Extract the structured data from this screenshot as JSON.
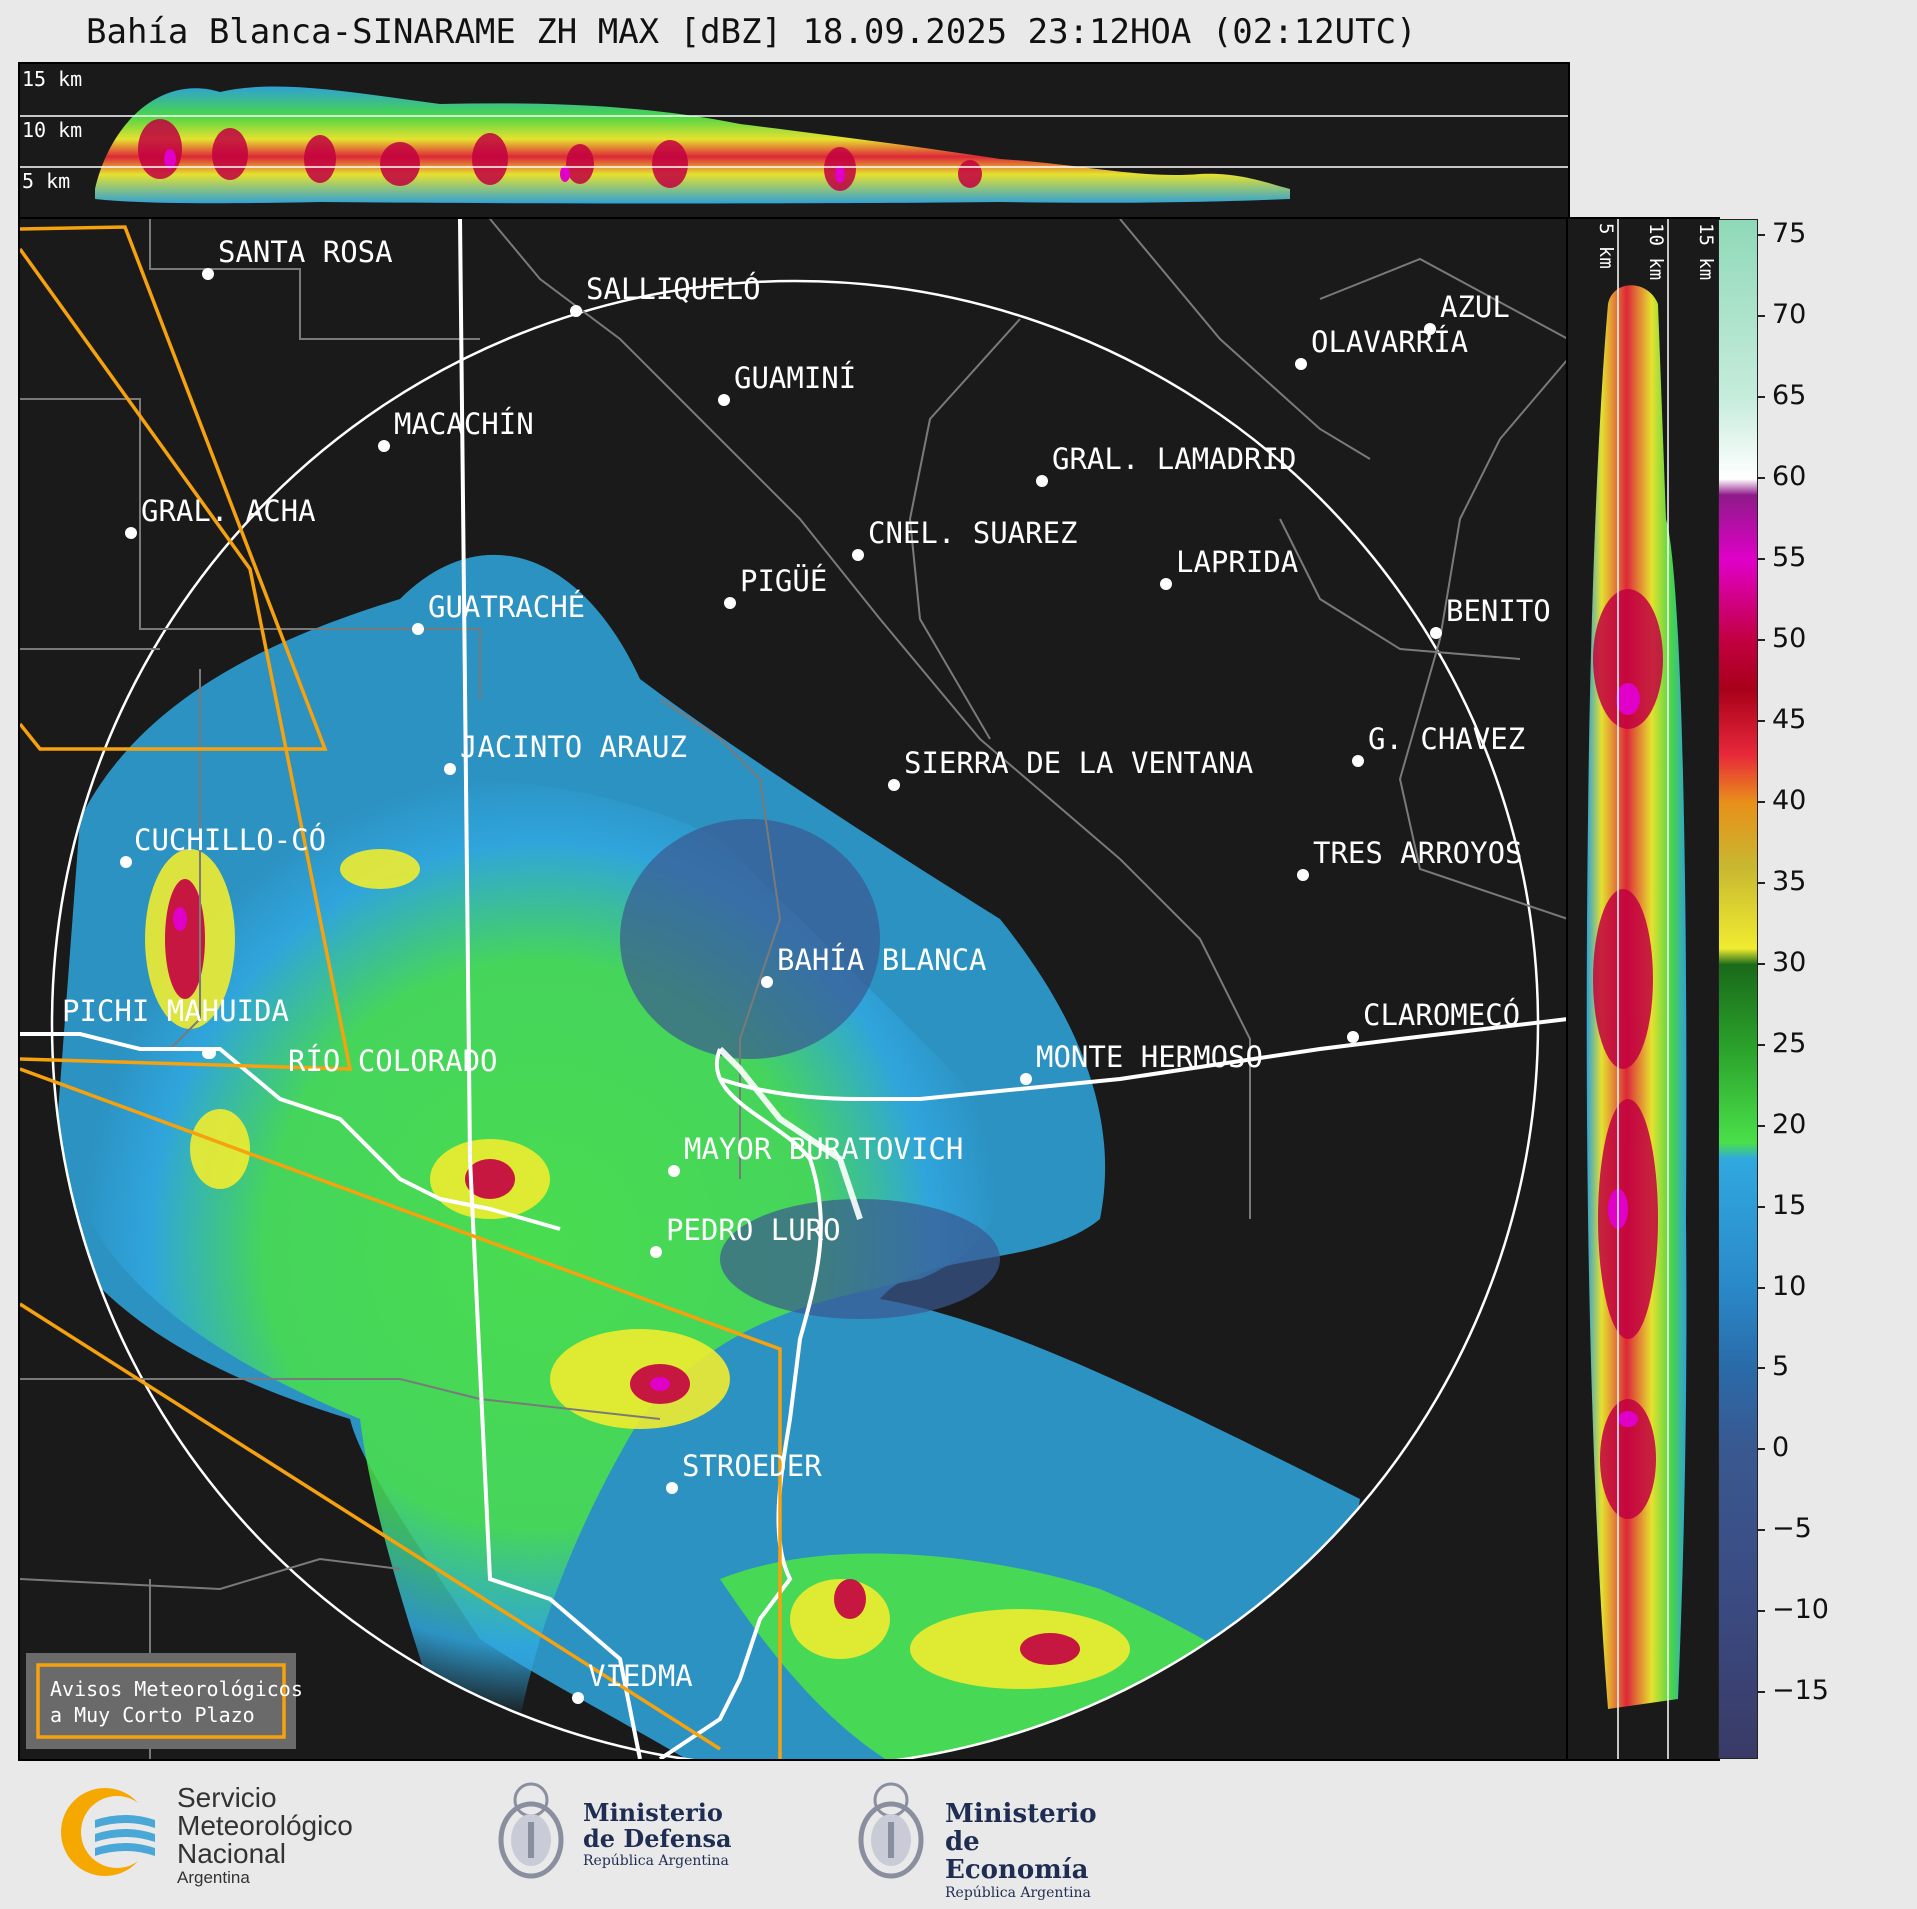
{
  "title": "Bahía Blanca-SINARAME ZH MAX [dBZ] 18.09.2025 23:12HOA (02:12UTC)",
  "top_panel": {
    "height_labels": [
      "15 km",
      "10 km",
      "5 km"
    ]
  },
  "side_panel": {
    "height_labels": [
      "5 km",
      "10 km",
      "15 km"
    ]
  },
  "colorbar": {
    "ticks": [
      "75",
      "70",
      "65",
      "60",
      "55",
      "50",
      "45",
      "40",
      "35",
      "30",
      "25",
      "20",
      "15",
      "10",
      "5",
      "0",
      "−5",
      "−10",
      "−15"
    ],
    "stops": [
      {
        "dbz": 76,
        "color": "#8fd9b8"
      },
      {
        "dbz": 65,
        "color": "#c6ecdc"
      },
      {
        "dbz": 60,
        "color": "#ffffff"
      },
      {
        "dbz": 59,
        "color": "#8e1a8a"
      },
      {
        "dbz": 55,
        "color": "#e000c8"
      },
      {
        "dbz": 50,
        "color": "#c20040"
      },
      {
        "dbz": 47,
        "color": "#a8001a"
      },
      {
        "dbz": 43,
        "color": "#e8283a"
      },
      {
        "dbz": 40,
        "color": "#e8901a"
      },
      {
        "dbz": 36,
        "color": "#c8b830"
      },
      {
        "dbz": 31,
        "color": "#f0ec30"
      },
      {
        "dbz": 30,
        "color": "#1a6a1a"
      },
      {
        "dbz": 25,
        "color": "#2aa02a"
      },
      {
        "dbz": 19,
        "color": "#4ae04a"
      },
      {
        "dbz": 18,
        "color": "#30a8e0"
      },
      {
        "dbz": 10,
        "color": "#2a88c8"
      },
      {
        "dbz": 5,
        "color": "#2a6aa8"
      },
      {
        "dbz": 0,
        "color": "#3a5890"
      },
      {
        "dbz": -10,
        "color": "#3a4a80"
      },
      {
        "dbz": -19,
        "color": "#3a3a66"
      }
    ]
  },
  "cities": [
    {
      "name": "SANTA ROSA"
    },
    {
      "name": "SALLIQUELÓ"
    },
    {
      "name": "AZUL"
    },
    {
      "name": "OLAVARRÍA"
    },
    {
      "name": "GUAMINÍ"
    },
    {
      "name": "MACACHÍN"
    },
    {
      "name": "GRAL. LAMADRID"
    },
    {
      "name": "GRAL. ACHA"
    },
    {
      "name": "CNEL. SUAREZ"
    },
    {
      "name": "LAPRIDA"
    },
    {
      "name": "PIGÜÉ"
    },
    {
      "name": "GUATRACHÉ"
    },
    {
      "name": "BENITO"
    },
    {
      "name": "JACINTO ARAUZ"
    },
    {
      "name": "G. CHAVEZ"
    },
    {
      "name": "SIERRA DE LA VENTANA"
    },
    {
      "name": "CUCHILLO-CÓ"
    },
    {
      "name": "TRES ARROYOS"
    },
    {
      "name": "BAHÍA BLANCA"
    },
    {
      "name": "CLAROMECÓ"
    },
    {
      "name": "PICHI MAHUIDA"
    },
    {
      "name": "MONTE HERMOSO"
    },
    {
      "name": "RÍO COLORADO"
    },
    {
      "name": "MAYOR BURATOVICH"
    },
    {
      "name": "PEDRO LURO"
    },
    {
      "name": "STROEDER"
    },
    {
      "name": "VIEDMA"
    }
  ],
  "warning_box": {
    "line1": "Avisos Meteorológicos",
    "line2": "a Muy Corto Plazo"
  },
  "logos": {
    "smn": {
      "line1": "Servicio",
      "line2": "Meteorológico",
      "line3": "Nacional",
      "line4": "Argentina"
    },
    "defensa": {
      "line1": "Ministerio",
      "line2": "de Defensa",
      "line3": "República Argentina"
    },
    "economia": {
      "line1": "Ministerio",
      "line2": "de Economía",
      "line3": "República Argentina"
    }
  }
}
